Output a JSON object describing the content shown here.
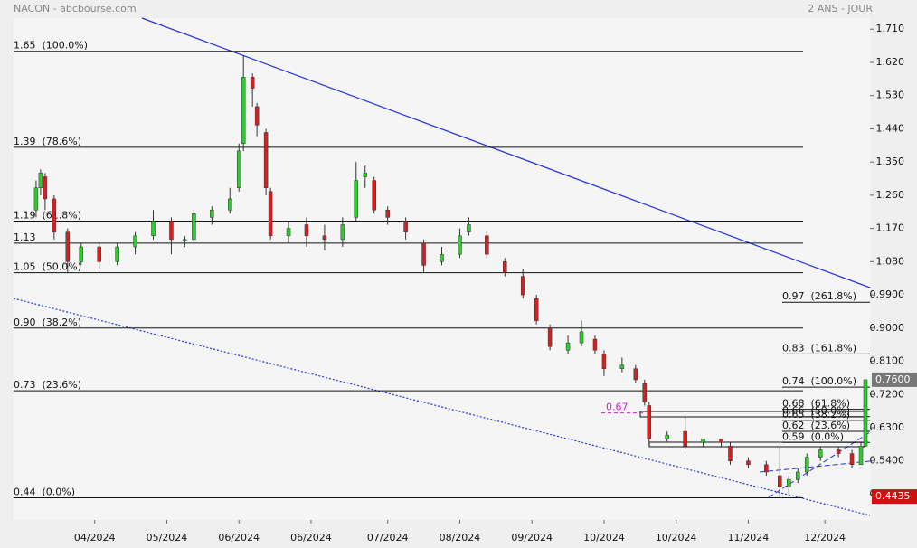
{
  "chart_data": {
    "type": "candlestick",
    "title": "NACON - abcbourse.com",
    "subtitle": "2 ANS - JOUR",
    "x": [
      4,
      5,
      6,
      8,
      11,
      14,
      18,
      22,
      26,
      30,
      34,
      37,
      39,
      43,
      47,
      49,
      50,
      52,
      53,
      55,
      56,
      60,
      64,
      68,
      72,
      75,
      77,
      79,
      82,
      86,
      90,
      94,
      98,
      100,
      104,
      108,
      112,
      115,
      118,
      122,
      125,
      128,
      130,
      134,
      137,
      139,
      140,
      144,
      148,
      152,
      156,
      158,
      162,
      166,
      169,
      171,
      173,
      175,
      178,
      182,
      185,
      187,
      188
    ],
    "open": [
      1.22,
      1.28,
      1.31,
      1.25,
      1.16,
      1.08,
      1.12,
      1.08,
      1.12,
      1.15,
      1.19,
      1.14,
      1.14,
      1.2,
      1.22,
      1.28,
      1.4,
      1.58,
      1.5,
      1.43,
      1.27,
      1.15,
      1.18,
      1.15,
      1.14,
      1.2,
      1.31,
      1.3,
      1.22,
      1.19,
      1.13,
      1.08,
      1.1,
      1.16,
      1.15,
      1.08,
      1.04,
      0.98,
      0.9,
      0.84,
      0.86,
      0.87,
      0.83,
      0.79,
      0.79,
      0.75,
      0.69,
      0.6,
      0.62,
      0.59,
      0.6,
      0.58,
      0.54,
      0.53,
      0.5,
      0.47,
      0.49,
      0.51,
      0.55,
      0.57,
      0.56,
      0.53,
      0.58
    ],
    "high": [
      1.3,
      1.33,
      1.32,
      1.26,
      1.17,
      1.13,
      1.13,
      1.13,
      1.16,
      1.22,
      1.2,
      1.15,
      1.22,
      1.23,
      1.28,
      1.4,
      1.64,
      1.59,
      1.51,
      1.44,
      1.28,
      1.19,
      1.2,
      1.18,
      1.2,
      1.35,
      1.34,
      1.31,
      1.23,
      1.2,
      1.14,
      1.12,
      1.17,
      1.2,
      1.16,
      1.09,
      1.06,
      0.99,
      0.91,
      0.88,
      0.92,
      0.88,
      0.84,
      0.82,
      0.8,
      0.76,
      0.7,
      0.62,
      0.66,
      0.6,
      0.6,
      0.59,
      0.55,
      0.54,
      0.58,
      0.5,
      0.52,
      0.56,
      0.58,
      0.58,
      0.57,
      0.59,
      0.76
    ],
    "low": [
      1.2,
      1.26,
      1.22,
      1.14,
      1.05,
      1.07,
      1.06,
      1.07,
      1.1,
      1.14,
      1.1,
      1.12,
      1.13,
      1.18,
      1.21,
      1.27,
      1.38,
      1.5,
      1.42,
      1.26,
      1.14,
      1.13,
      1.12,
      1.11,
      1.12,
      1.19,
      1.28,
      1.21,
      1.18,
      1.14,
      1.05,
      1.07,
      1.09,
      1.15,
      1.09,
      1.04,
      0.98,
      0.91,
      0.84,
      0.83,
      0.85,
      0.83,
      0.77,
      0.78,
      0.75,
      0.69,
      0.58,
      0.59,
      0.57,
      0.58,
      0.58,
      0.53,
      0.52,
      0.5,
      0.44,
      0.45,
      0.48,
      0.5,
      0.54,
      0.55,
      0.52,
      0.53,
      0.58
    ],
    "close": [
      1.28,
      1.32,
      1.25,
      1.16,
      1.08,
      1.12,
      1.08,
      1.12,
      1.15,
      1.19,
      1.14,
      1.14,
      1.21,
      1.22,
      1.25,
      1.38,
      1.58,
      1.55,
      1.45,
      1.28,
      1.15,
      1.17,
      1.15,
      1.14,
      1.18,
      1.3,
      1.32,
      1.22,
      1.2,
      1.16,
      1.07,
      1.1,
      1.15,
      1.18,
      1.1,
      1.05,
      0.99,
      0.92,
      0.85,
      0.86,
      0.89,
      0.84,
      0.79,
      0.8,
      0.76,
      0.7,
      0.6,
      0.61,
      0.58,
      0.6,
      0.59,
      0.54,
      0.53,
      0.51,
      0.47,
      0.49,
      0.51,
      0.55,
      0.57,
      0.56,
      0.53,
      0.58,
      0.76
    ],
    "up_color": "#2ecc2e",
    "down_color": "#d42020",
    "xlim": [
      -1,
      189
    ],
    "xticks": [
      {
        "value": 17,
        "label": "04/2024"
      },
      {
        "value": 33,
        "label": "05/2024"
      },
      {
        "value": 49,
        "label": "06/2024"
      },
      {
        "value": 65,
        "label": "06/2024"
      },
      {
        "value": 82,
        "label": "07/2024"
      },
      {
        "value": 98,
        "label": "08/2024"
      },
      {
        "value": 114,
        "label": "09/2024"
      },
      {
        "value": 130,
        "label": "10/2024"
      },
      {
        "value": 146,
        "label": "10/2024"
      },
      {
        "value": 162,
        "label": "11/2024"
      },
      {
        "value": 179,
        "label": "12/2024"
      }
    ],
    "ylim": [
      0.38,
      1.74
    ],
    "yticks": [
      {
        "value": 1.71,
        "label": "1.710"
      },
      {
        "value": 1.62,
        "label": "1.620"
      },
      {
        "value": 1.53,
        "label": "1.530"
      },
      {
        "value": 1.44,
        "label": "1.440"
      },
      {
        "value": 1.35,
        "label": "1.350"
      },
      {
        "value": 1.26,
        "label": "1.260"
      },
      {
        "value": 1.17,
        "label": "1.170"
      },
      {
        "value": 1.08,
        "label": "1.080"
      },
      {
        "value": 0.99,
        "label": "0.9900"
      },
      {
        "value": 0.9,
        "label": "0.9000"
      },
      {
        "value": 0.81,
        "label": "0.8100"
      },
      {
        "value": 0.72,
        "label": "0.7200"
      },
      {
        "value": 0.63,
        "label": "0.6300"
      },
      {
        "value": 0.54,
        "label": "0.5400"
      },
      {
        "value": 0.45,
        "label": "0.4500"
      }
    ],
    "fib_left": [
      {
        "value": 1.65,
        "label": "1.65  (100.0%)"
      },
      {
        "value": 1.39,
        "label": "1.39  (78.6%)"
      },
      {
        "value": 1.19,
        "label": "1.19  (61.8%)"
      },
      {
        "value": 1.13,
        "label": "1.13"
      },
      {
        "value": 1.05,
        "label": "1.05  (50.0%)"
      },
      {
        "value": 0.9,
        "label": "0.90  (38.2%)"
      },
      {
        "value": 0.73,
        "label": "0.73  (23.6%)"
      },
      {
        "value": 0.44,
        "label": "0.44  (0.0%)"
      }
    ],
    "fib_right": [
      {
        "value": 0.97,
        "label": "0.97  (261.8%)"
      },
      {
        "value": 0.83,
        "label": "0.83  (161.8%)"
      },
      {
        "value": 0.74,
        "label": "0.74  (100.0%)"
      },
      {
        "value": 0.68,
        "label": "0.68  (61.8%)"
      },
      {
        "value": 0.66,
        "label": "0.66  (50.0%)"
      },
      {
        "value": 0.65,
        "label": "0.65  (38.2%)"
      },
      {
        "value": 0.62,
        "label": "0.62  (23.6%)"
      },
      {
        "value": 0.59,
        "label": "0.59  (0.0%)"
      }
    ],
    "annotation": {
      "value": 0.67,
      "label": "0.67"
    },
    "last_price": {
      "value": 0.76,
      "label": "0.7600"
    },
    "low_price": 0.4435
  }
}
